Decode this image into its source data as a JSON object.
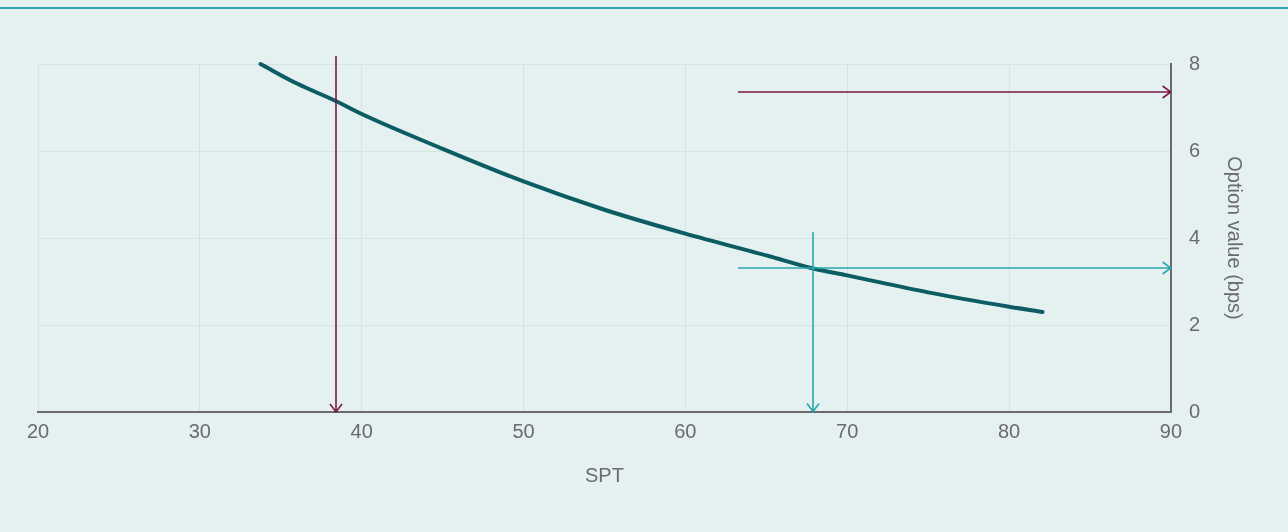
{
  "chart_data": {
    "type": "line",
    "xlabel": "SPT",
    "y2label": "Option value (bps)",
    "xlim": [
      20,
      90
    ],
    "xticks": [
      20,
      30,
      40,
      50,
      60,
      70,
      80,
      90
    ],
    "y2lim": [
      0,
      8
    ],
    "y2ticks": [
      0,
      2,
      4,
      6,
      8
    ],
    "grid": true,
    "legend": false,
    "marker": "none",
    "line_style": "solid",
    "series": [
      {
        "color": "#0b5c63",
        "axis": "y2",
        "x": [
          33.75,
          36,
          38.4,
          40,
          45,
          50,
          55,
          60,
          65,
          67.9,
          70,
          75,
          80,
          82.07
        ],
        "values": [
          8,
          7.55,
          7.15,
          6.85,
          6.05,
          5.3,
          4.65,
          4.1,
          3.6,
          3.3,
          3.14,
          2.75,
          2.42,
          2.3
        ]
      }
    ],
    "ref_lines": [
      {
        "axis": "x",
        "value": 38.4,
        "color": "#7a1a4a"
      },
      {
        "axis": "y2",
        "value": 7.36,
        "color": "#7a1a4a"
      },
      {
        "axis": "x",
        "value": 67.9,
        "color": "#2aa8b0"
      },
      {
        "axis": "y2",
        "value": 3.3,
        "color": "#2aa8b0"
      }
    ]
  }
}
